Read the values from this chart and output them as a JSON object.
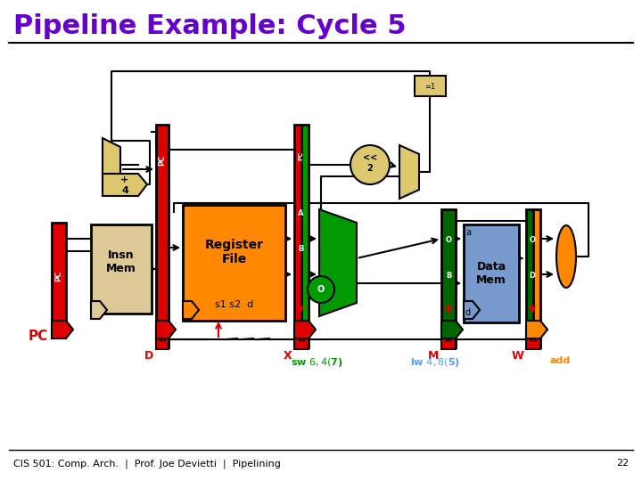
{
  "title": "Pipeline Example: Cycle 5",
  "title_color": "#6600cc",
  "title_fontsize": 22,
  "bg_color": "#ffffff",
  "footer_text": "CIS 501: Comp. Arch.  |  Prof. Joe Devietti  |  Pipelining",
  "footer_page": "22",
  "subtitle_green": "sw $6,4($7)",
  "subtitle_blue": "lw $4,8($5)",
  "subtitle_orange": "add"
}
